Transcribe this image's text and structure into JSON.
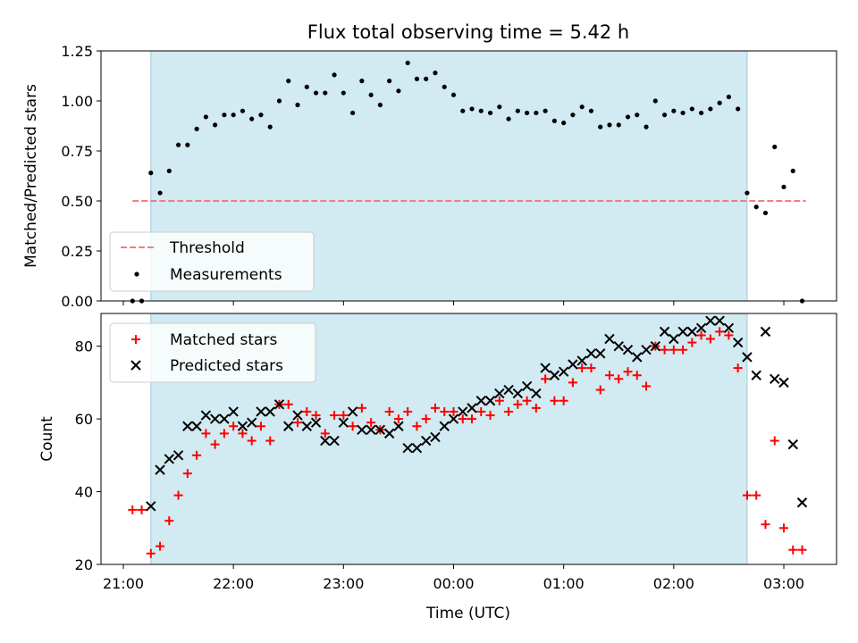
{
  "chart_data": [
    {
      "type": "scatter",
      "title": "Flux total observing time = 5.42 h",
      "xlabel": "",
      "ylabel": "Matched/Predicted stars",
      "xlim": [
        "20:50",
        "03:28"
      ],
      "ylim": [
        0,
        1.25
      ],
      "y_ticks": [
        "0.00",
        "0.25",
        "0.50",
        "0.75",
        "1.00",
        "1.25"
      ],
      "x_ticks": [
        "21:00",
        "22:00",
        "23:00",
        "00:00",
        "01:00",
        "02:00",
        "03:00"
      ],
      "legend_position": "lower-left",
      "shaded_interval": {
        "start": "21:15",
        "end": "02:40",
        "color": "#add8e6"
      },
      "threshold": {
        "name": "Threshold",
        "value": 0.5,
        "x_start": "21:05",
        "x_end": "03:12",
        "color": "#f08080",
        "style": "dashed"
      },
      "series": [
        {
          "name": "Measurements",
          "marker": "dot",
          "color": "#000000",
          "points": [
            [
              "21:05",
              0.0
            ],
            [
              "21:10",
              0.0
            ],
            [
              "21:15",
              0.64
            ],
            [
              "21:20",
              0.54
            ],
            [
              "21:25",
              0.65
            ],
            [
              "21:30",
              0.78
            ],
            [
              "21:35",
              0.78
            ],
            [
              "21:40",
              0.86
            ],
            [
              "21:45",
              0.92
            ],
            [
              "21:50",
              0.88
            ],
            [
              "21:55",
              0.93
            ],
            [
              "22:00",
              0.93
            ],
            [
              "22:05",
              0.95
            ],
            [
              "22:10",
              0.91
            ],
            [
              "22:15",
              0.93
            ],
            [
              "22:20",
              0.87
            ],
            [
              "22:25",
              1.0
            ],
            [
              "22:30",
              1.1
            ],
            [
              "22:35",
              0.98
            ],
            [
              "22:40",
              1.07
            ],
            [
              "22:45",
              1.04
            ],
            [
              "22:50",
              1.04
            ],
            [
              "22:55",
              1.13
            ],
            [
              "23:00",
              1.04
            ],
            [
              "23:05",
              0.94
            ],
            [
              "23:10",
              1.1
            ],
            [
              "23:15",
              1.03
            ],
            [
              "23:20",
              0.98
            ],
            [
              "23:25",
              1.1
            ],
            [
              "23:30",
              1.05
            ],
            [
              "23:35",
              1.19
            ],
            [
              "23:40",
              1.11
            ],
            [
              "23:45",
              1.11
            ],
            [
              "23:50",
              1.14
            ],
            [
              "23:55",
              1.07
            ],
            [
              "00:00",
              1.03
            ],
            [
              "00:05",
              0.95
            ],
            [
              "00:10",
              0.96
            ],
            [
              "00:15",
              0.95
            ],
            [
              "00:20",
              0.94
            ],
            [
              "00:25",
              0.97
            ],
            [
              "00:30",
              0.91
            ],
            [
              "00:35",
              0.95
            ],
            [
              "00:40",
              0.94
            ],
            [
              "00:45",
              0.94
            ],
            [
              "00:50",
              0.95
            ],
            [
              "00:55",
              0.9
            ],
            [
              "01:00",
              0.89
            ],
            [
              "01:05",
              0.93
            ],
            [
              "01:10",
              0.97
            ],
            [
              "01:15",
              0.95
            ],
            [
              "01:20",
              0.87
            ],
            [
              "01:25",
              0.88
            ],
            [
              "01:30",
              0.88
            ],
            [
              "01:35",
              0.92
            ],
            [
              "01:40",
              0.93
            ],
            [
              "01:45",
              0.87
            ],
            [
              "01:50",
              1.0
            ],
            [
              "01:55",
              0.93
            ],
            [
              "02:00",
              0.95
            ],
            [
              "02:05",
              0.94
            ],
            [
              "02:10",
              0.96
            ],
            [
              "02:15",
              0.94
            ],
            [
              "02:20",
              0.96
            ],
            [
              "02:25",
              0.99
            ],
            [
              "02:30",
              1.02
            ],
            [
              "02:35",
              0.96
            ],
            [
              "02:40",
              0.54
            ],
            [
              "02:45",
              0.47
            ],
            [
              "02:50",
              0.44
            ],
            [
              "02:55",
              0.77
            ],
            [
              "03:00",
              0.57
            ],
            [
              "03:05",
              0.65
            ],
            [
              "03:10",
              0.0
            ]
          ]
        }
      ]
    },
    {
      "type": "scatter",
      "title": "",
      "xlabel": "Time (UTC)",
      "ylabel": "Count",
      "xlim": [
        "20:50",
        "03:28"
      ],
      "ylim": [
        20,
        89
      ],
      "y_ticks": [
        "20",
        "40",
        "60",
        "80"
      ],
      "x_ticks": [
        "21:00",
        "22:00",
        "23:00",
        "00:00",
        "01:00",
        "02:00",
        "03:00"
      ],
      "legend_position": "upper-left",
      "shaded_interval": {
        "start": "21:15",
        "end": "02:40",
        "color": "#add8e6"
      },
      "series": [
        {
          "name": "Matched stars",
          "marker": "plus",
          "color": "#ff0000",
          "points": [
            [
              "21:05",
              35
            ],
            [
              "21:10",
              35
            ],
            [
              "21:15",
              23
            ],
            [
              "21:20",
              25
            ],
            [
              "21:25",
              32
            ],
            [
              "21:30",
              39
            ],
            [
              "21:35",
              45
            ],
            [
              "21:40",
              50
            ],
            [
              "21:45",
              56
            ],
            [
              "21:50",
              53
            ],
            [
              "21:55",
              56
            ],
            [
              "22:00",
              58
            ],
            [
              "22:05",
              56
            ],
            [
              "22:10",
              54
            ],
            [
              "22:15",
              58
            ],
            [
              "22:20",
              54
            ],
            [
              "22:25",
              64
            ],
            [
              "22:30",
              64
            ],
            [
              "22:35",
              59
            ],
            [
              "22:40",
              62
            ],
            [
              "22:45",
              61
            ],
            [
              "22:50",
              56
            ],
            [
              "22:55",
              61
            ],
            [
              "23:00",
              61
            ],
            [
              "23:05",
              58
            ],
            [
              "23:10",
              63
            ],
            [
              "23:15",
              59
            ],
            [
              "23:20",
              57
            ],
            [
              "23:25",
              62
            ],
            [
              "23:30",
              60
            ],
            [
              "23:35",
              62
            ],
            [
              "23:40",
              58
            ],
            [
              "23:45",
              60
            ],
            [
              "23:50",
              63
            ],
            [
              "23:55",
              62
            ],
            [
              "00:00",
              62
            ],
            [
              "00:05",
              60
            ],
            [
              "00:10",
              60
            ],
            [
              "00:15",
              62
            ],
            [
              "00:20",
              61
            ],
            [
              "00:25",
              65
            ],
            [
              "00:30",
              62
            ],
            [
              "00:35",
              64
            ],
            [
              "00:40",
              65
            ],
            [
              "00:45",
              63
            ],
            [
              "00:50",
              71
            ],
            [
              "00:55",
              65
            ],
            [
              "01:00",
              65
            ],
            [
              "01:05",
              70
            ],
            [
              "01:10",
              74
            ],
            [
              "01:15",
              74
            ],
            [
              "01:20",
              68
            ],
            [
              "01:25",
              72
            ],
            [
              "01:30",
              71
            ],
            [
              "01:35",
              73
            ],
            [
              "01:40",
              72
            ],
            [
              "01:45",
              69
            ],
            [
              "01:50",
              80
            ],
            [
              "01:55",
              79
            ],
            [
              "02:00",
              79
            ],
            [
              "02:05",
              79
            ],
            [
              "02:10",
              81
            ],
            [
              "02:15",
              83
            ],
            [
              "02:20",
              82
            ],
            [
              "02:25",
              84
            ],
            [
              "02:30",
              83
            ],
            [
              "02:35",
              74
            ],
            [
              "02:40",
              39
            ],
            [
              "02:45",
              39
            ],
            [
              "02:50",
              31
            ],
            [
              "02:55",
              54
            ],
            [
              "03:00",
              30
            ],
            [
              "03:05",
              24
            ],
            [
              "03:10",
              24
            ]
          ]
        },
        {
          "name": "Predicted stars",
          "marker": "x",
          "color": "#000000",
          "points": [
            [
              "21:15",
              36
            ],
            [
              "21:20",
              46
            ],
            [
              "21:25",
              49
            ],
            [
              "21:30",
              50
            ],
            [
              "21:35",
              58
            ],
            [
              "21:40",
              58
            ],
            [
              "21:45",
              61
            ],
            [
              "21:50",
              60
            ],
            [
              "21:55",
              60
            ],
            [
              "22:00",
              62
            ],
            [
              "22:05",
              58
            ],
            [
              "22:10",
              59
            ],
            [
              "22:15",
              62
            ],
            [
              "22:20",
              62
            ],
            [
              "22:25",
              64
            ],
            [
              "22:30",
              58
            ],
            [
              "22:35",
              61
            ],
            [
              "22:40",
              58
            ],
            [
              "22:45",
              59
            ],
            [
              "22:50",
              54
            ],
            [
              "22:55",
              54
            ],
            [
              "23:00",
              59
            ],
            [
              "23:05",
              62
            ],
            [
              "23:10",
              57
            ],
            [
              "23:15",
              57
            ],
            [
              "23:20",
              57
            ],
            [
              "23:25",
              56
            ],
            [
              "23:30",
              58
            ],
            [
              "23:35",
              52
            ],
            [
              "23:40",
              52
            ],
            [
              "23:45",
              54
            ],
            [
              "23:50",
              55
            ],
            [
              "23:55",
              58
            ],
            [
              "00:00",
              60
            ],
            [
              "00:05",
              62
            ],
            [
              "00:10",
              63
            ],
            [
              "00:15",
              65
            ],
            [
              "00:20",
              65
            ],
            [
              "00:25",
              67
            ],
            [
              "00:30",
              68
            ],
            [
              "00:35",
              67
            ],
            [
              "00:40",
              69
            ],
            [
              "00:45",
              67
            ],
            [
              "00:50",
              74
            ],
            [
              "00:55",
              72
            ],
            [
              "01:00",
              73
            ],
            [
              "01:05",
              75
            ],
            [
              "01:10",
              76
            ],
            [
              "01:15",
              78
            ],
            [
              "01:20",
              78
            ],
            [
              "01:25",
              82
            ],
            [
              "01:30",
              80
            ],
            [
              "01:35",
              79
            ],
            [
              "01:40",
              77
            ],
            [
              "01:45",
              79
            ],
            [
              "01:50",
              80
            ],
            [
              "01:55",
              84
            ],
            [
              "02:00",
              82
            ],
            [
              "02:05",
              84
            ],
            [
              "02:10",
              84
            ],
            [
              "02:15",
              85
            ],
            [
              "02:20",
              87
            ],
            [
              "02:25",
              87
            ],
            [
              "02:30",
              85
            ],
            [
              "02:35",
              81
            ],
            [
              "02:40",
              77
            ],
            [
              "02:45",
              72
            ],
            [
              "02:50",
              84
            ],
            [
              "02:55",
              71
            ],
            [
              "03:00",
              70
            ],
            [
              "03:05",
              53
            ],
            [
              "03:10",
              37
            ]
          ]
        }
      ]
    }
  ]
}
